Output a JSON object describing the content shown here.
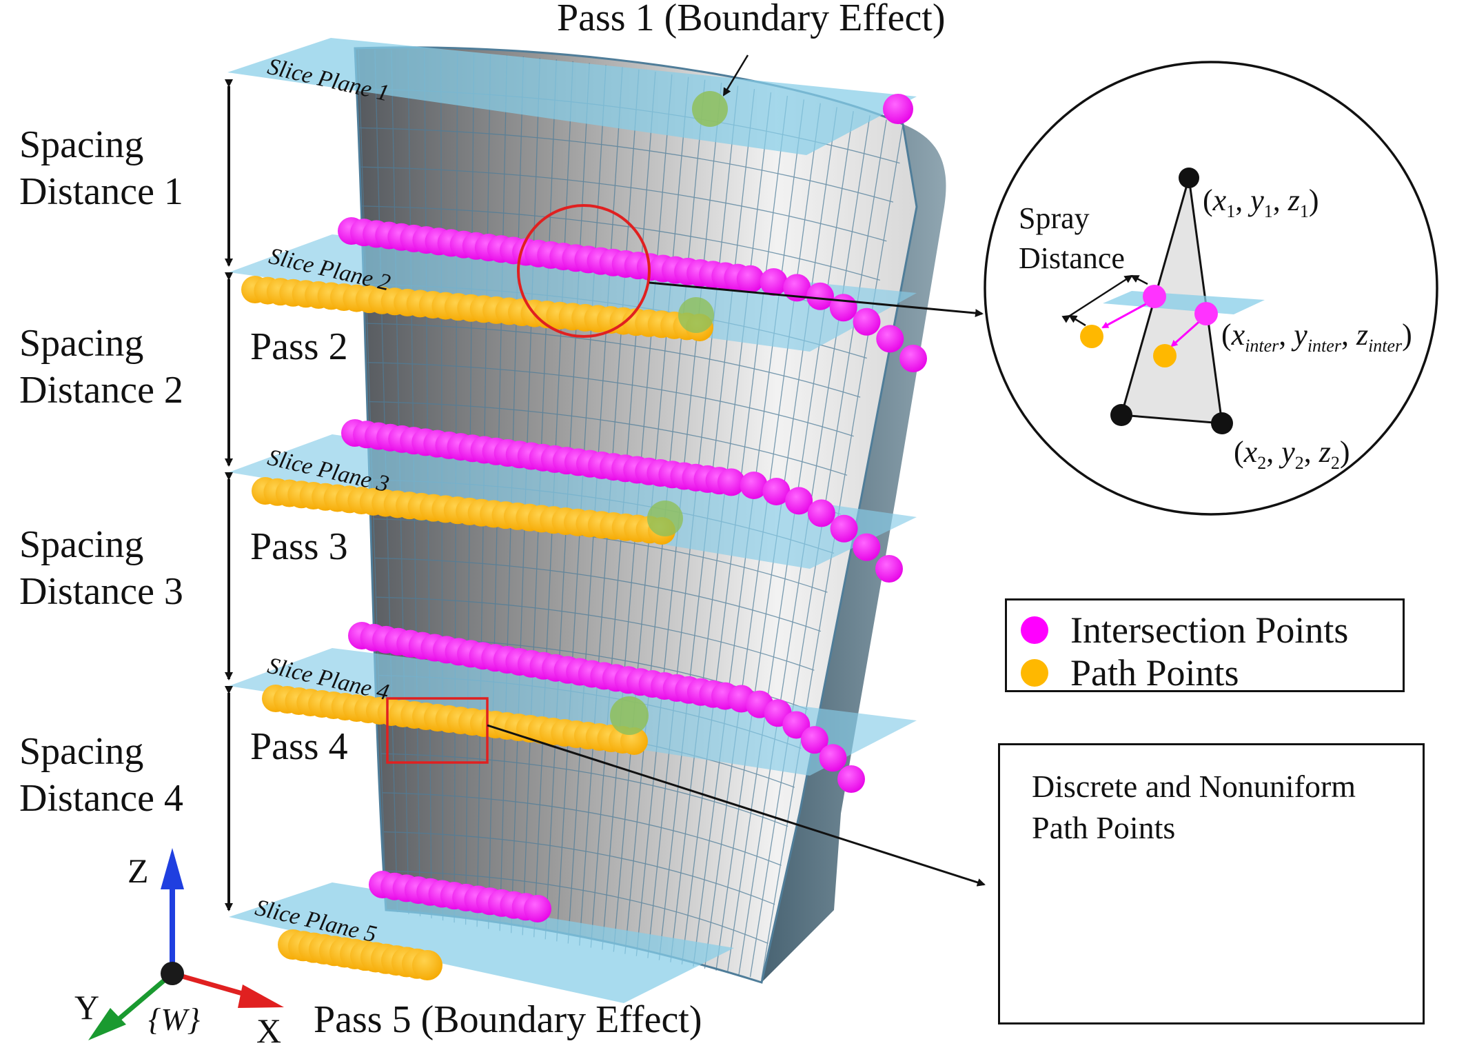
{
  "title_top": "Pass 1 (Boundary Effect)",
  "title_bottom": "Pass 5 (Boundary Effect)",
  "spacing_labels": [
    "Spacing\nDistance 1",
    "Spacing\nDistance 2",
    "Spacing\nDistance 3",
    "Spacing\nDistance 4"
  ],
  "pass_labels": [
    "Pass 2",
    "Pass 3",
    "Pass 4"
  ],
  "slice_planes": [
    "Slice Plane 1",
    "Slice Plane 2",
    "Slice Plane 3",
    "Slice Plane 4",
    "Slice Plane 5"
  ],
  "axes": {
    "z": "Z",
    "y": "Y",
    "x": "X",
    "frame": "{W}"
  },
  "inset": {
    "spray_label": "Spray\nDistance",
    "p1": {
      "x": "x",
      "y": "y",
      "z": "z",
      "sub": "1"
    },
    "p2": {
      "x": "x",
      "y": "y",
      "z": "z",
      "sub": "2"
    },
    "pinter": {
      "x": "x",
      "y": "y",
      "z": "z",
      "sub": "inter"
    }
  },
  "legend": {
    "items": [
      {
        "label": "Intersection Points",
        "color": "#ff00ff"
      },
      {
        "label": "Path Points",
        "color": "#ffb800"
      }
    ]
  },
  "zoom": {
    "title": "Discrete and Nonuniform\nPath Points"
  },
  "colors": {
    "magenta": "#ff00ff",
    "orange": "#ffb800",
    "plane": "#87cde8",
    "surface_dark": "#5a5f66",
    "surface_light": "#e6e6e6",
    "mesh": "#4f7d99"
  }
}
